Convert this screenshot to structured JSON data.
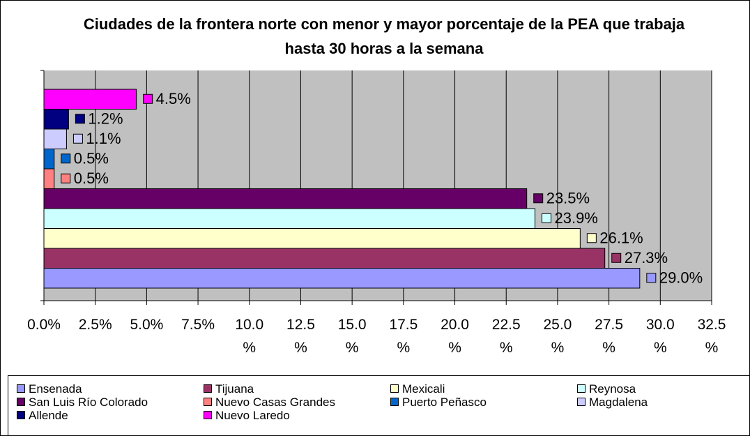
{
  "chart_data": {
    "type": "bar",
    "orientation": "horizontal",
    "title": "Ciudades de la frontera norte con menor y mayor porcentaje de la PEA que trabaja hasta 30 horas a la semana",
    "xlim": [
      0,
      32.5
    ],
    "xticks": [
      {
        "value": 0,
        "label": "0.0%"
      },
      {
        "value": 2.5,
        "label": "2.5%"
      },
      {
        "value": 5,
        "label": "5.0%"
      },
      {
        "value": 7.5,
        "label": "7.5%"
      },
      {
        "value": 10,
        "label": "10.0 %"
      },
      {
        "value": 12.5,
        "label": "12.5 %"
      },
      {
        "value": 15,
        "label": "15.0 %"
      },
      {
        "value": 17.5,
        "label": "17.5 %"
      },
      {
        "value": 20,
        "label": "20.0 %"
      },
      {
        "value": 22.5,
        "label": "22.5 %"
      },
      {
        "value": 25,
        "label": "25.0 %"
      },
      {
        "value": 27.5,
        "label": "27.5 %"
      },
      {
        "value": 30,
        "label": "30.0 %"
      },
      {
        "value": 32.5,
        "label": "32.5 %"
      }
    ],
    "grid": true,
    "legend": "bottom",
    "series": [
      {
        "name": "Ensenada",
        "color": "#9999ff",
        "values": [
          29.0
        ],
        "value_labels": [
          "29.0%"
        ]
      },
      {
        "name": "Tijuana",
        "color": "#993366",
        "values": [
          27.3
        ],
        "value_labels": [
          "27.3%"
        ]
      },
      {
        "name": "Mexicali",
        "color": "#ffffcc",
        "values": [
          26.1
        ],
        "value_labels": [
          "26.1%"
        ]
      },
      {
        "name": "Reynosa",
        "color": "#ccffff",
        "values": [
          23.9
        ],
        "value_labels": [
          "23.9%"
        ]
      },
      {
        "name": "San Luis Río Colorado",
        "color": "#660066",
        "values": [
          23.5
        ],
        "value_labels": [
          "23.5%"
        ]
      },
      {
        "name": "Nuevo Casas Grandes",
        "color": "#ff8080",
        "values": [
          0.5
        ],
        "value_labels": [
          "0.5%"
        ]
      },
      {
        "name": "Puerto Peñasco",
        "color": "#0066cc",
        "values": [
          0.5
        ],
        "value_labels": [
          "0.5%"
        ]
      },
      {
        "name": "Magdalena",
        "color": "#ccccff",
        "values": [
          1.1
        ],
        "value_labels": [
          "1.1%"
        ]
      },
      {
        "name": "Allende",
        "color": "#000080",
        "values": [
          1.2
        ],
        "value_labels": [
          "1.2%"
        ]
      },
      {
        "name": "Nuevo Laredo",
        "color": "#ff00ff",
        "values": [
          4.5
        ],
        "value_labels": [
          "4.5%"
        ]
      }
    ]
  }
}
